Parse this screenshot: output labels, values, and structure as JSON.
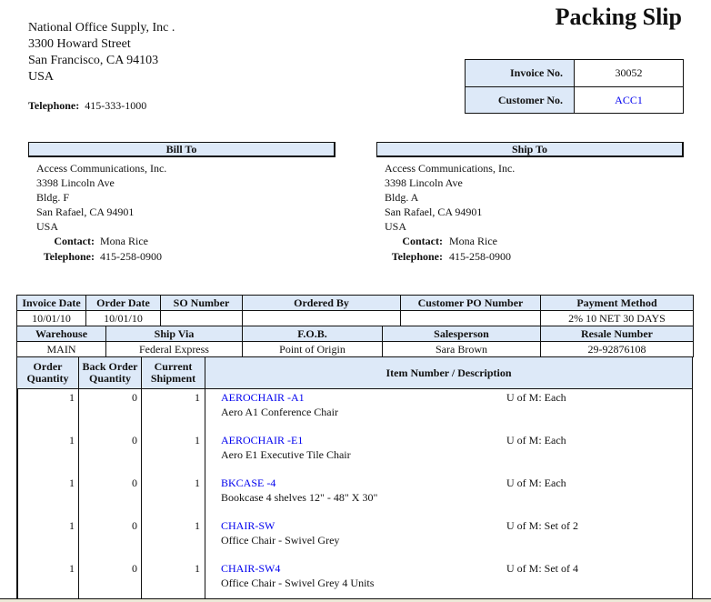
{
  "company": {
    "name": "National Office Supply, Inc .",
    "street": "3300  Howard Street",
    "city": "San Francisco, CA  94103",
    "country": "USA",
    "telephone_label": "Telephone:",
    "telephone": "415-333-1000"
  },
  "title": "Packing Slip",
  "invoice_box": {
    "invoice_label": "Invoice No.",
    "invoice_no": "30052",
    "customer_label": "Customer No.",
    "customer_no": "ACC1"
  },
  "bill_to": {
    "heading": "Bill To",
    "name": "Access Communications, Inc.",
    "street": "3398  Lincoln Ave",
    "suite": "Bldg. F",
    "city": "San Rafael, CA  94901",
    "country": "USA",
    "contact_label": "Contact:",
    "contact": "Mona Rice",
    "telephone_label": "Telephone:",
    "telephone": "415-258-0900"
  },
  "ship_to": {
    "heading": "Ship To",
    "name": "Access Communications, Inc.",
    "street": "3398  Lincoln Ave",
    "suite": "Bldg. A",
    "city": "San Rafael, CA  94901",
    "country": "USA",
    "contact_label": "Contact:",
    "contact": "Mona Rice",
    "telephone_label": "Telephone:",
    "telephone": "415-258-0900"
  },
  "order_info": {
    "headers1": [
      "Invoice Date",
      "Order Date",
      "SO Number",
      "Ordered By",
      "Customer PO Number",
      "Payment Method"
    ],
    "values1": [
      "10/01/10",
      "10/01/10",
      "",
      "",
      "",
      "2% 10 NET 30 DAYS"
    ],
    "headers2": [
      "Warehouse",
      "Ship Via",
      "F.O.B.",
      "Salesperson",
      "Resale Number"
    ],
    "values2": [
      "MAIN",
      "Federal Express",
      "Point of Origin",
      "Sara Brown",
      "29-92876108"
    ]
  },
  "items_header": {
    "order_qty": "Order Quantity",
    "back_order_qty": "Back Order Quantity",
    "current_shipment": "Current Shipment",
    "item_desc": "Item Number / Description"
  },
  "items": [
    {
      "order_qty": "1",
      "back_order_qty": "0",
      "current_shipment": "1",
      "item_no": "AEROCHAIR -A1",
      "description": "Aero A1 Conference Chair",
      "uom": "U of M: Each"
    },
    {
      "order_qty": "1",
      "back_order_qty": "0",
      "current_shipment": "1",
      "item_no": "AEROCHAIR -E1",
      "description": "Aero E1 Executive Tile Chair",
      "uom": "U of M: Each"
    },
    {
      "order_qty": "1",
      "back_order_qty": "0",
      "current_shipment": "1",
      "item_no": "BKCASE -4",
      "description": "Bookcase 4 shelves 12\" - 48\" X 30\"",
      "uom": "U of M: Each"
    },
    {
      "order_qty": "1",
      "back_order_qty": "0",
      "current_shipment": "1",
      "item_no": "CHAIR-SW",
      "description": "Office Chair  - Swivel Grey",
      "uom": "U of M: Set of 2"
    },
    {
      "order_qty": "1",
      "back_order_qty": "0",
      "current_shipment": "1",
      "item_no": "CHAIR-SW4",
      "description": "Office Chair  - Swivel Grey  4 Units",
      "uom": "U of M: Set of 4"
    }
  ],
  "colors": {
    "header_fill": "#dde9f8",
    "link": "#0000ee"
  }
}
